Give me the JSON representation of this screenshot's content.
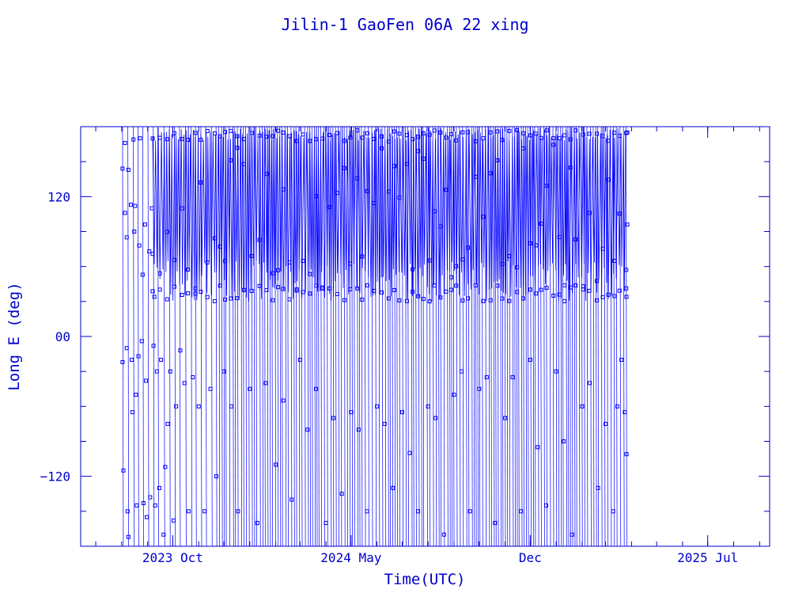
{
  "chart_data": {
    "type": "scatter",
    "title": "Jilin-1 GaoFen 06A 22 xing",
    "xlabel": "Time(UTC)",
    "ylabel": "Long E (deg)",
    "ylim": [
      -180,
      180
    ],
    "xlim": [
      "2023-06-13",
      "2025-09-13"
    ],
    "x_ticks": [
      {
        "label": "2023 Oct",
        "date": "2023-10-01"
      },
      {
        "label": "2024 May",
        "date": "2024-05-01"
      },
      {
        "label": "Dec",
        "date": "2024-12-01"
      },
      {
        "label": "2025 Jul",
        "date": "2025-07-01"
      }
    ],
    "y_ticks": [
      {
        "label": "120",
        "value": 120
      },
      {
        "label": "00",
        "value": 0
      },
      {
        "label": "−120",
        "value": -120
      }
    ],
    "grid": false,
    "series": [
      {
        "color": "#0000ff",
        "marker": "square",
        "x_range": [
          "2023-08-02",
          "2025-03-27"
        ],
        "y_band_dense": [
          30,
          180
        ],
        "points": [
          {
            "x": "2023-08-02",
            "y": 144
          },
          {
            "x": "2023-08-02",
            "y": -22
          },
          {
            "x": "2023-08-03",
            "y": -115
          },
          {
            "x": "2023-08-05",
            "y": 166
          },
          {
            "x": "2023-08-05",
            "y": 106
          },
          {
            "x": "2023-08-07",
            "y": -10
          },
          {
            "x": "2023-08-07",
            "y": 85
          },
          {
            "x": "2023-08-08",
            "y": -150
          },
          {
            "x": "2023-08-09",
            "y": 143
          },
          {
            "x": "2023-08-09",
            "y": -172
          },
          {
            "x": "2023-08-12",
            "y": 113
          },
          {
            "x": "2023-08-13",
            "y": -20
          },
          {
            "x": "2023-08-14",
            "y": -65
          },
          {
            "x": "2023-08-15",
            "y": 169
          },
          {
            "x": "2023-08-16",
            "y": 90
          },
          {
            "x": "2023-08-17",
            "y": 112
          },
          {
            "x": "2023-08-18",
            "y": -50
          },
          {
            "x": "2023-08-19",
            "y": -145
          },
          {
            "x": "2023-08-21",
            "y": -17
          },
          {
            "x": "2023-08-22",
            "y": 78
          },
          {
            "x": "2023-08-23",
            "y": 170
          },
          {
            "x": "2023-08-25",
            "y": -4
          },
          {
            "x": "2023-08-26",
            "y": 53
          },
          {
            "x": "2023-08-27",
            "y": -143
          },
          {
            "x": "2023-08-29",
            "y": 96
          },
          {
            "x": "2023-08-30",
            "y": -38
          },
          {
            "x": "2023-08-31",
            "y": -155
          },
          {
            "x": "2023-09-03",
            "y": 73
          },
          {
            "x": "2023-09-04",
            "y": -138
          },
          {
            "x": "2023-09-06",
            "y": 110
          },
          {
            "x": "2023-09-08",
            "y": -8
          },
          {
            "x": "2023-09-09",
            "y": 34
          },
          {
            "x": "2023-09-10",
            "y": -145
          },
          {
            "x": "2023-09-12",
            "y": -30
          },
          {
            "x": "2023-09-15",
            "y": -130
          },
          {
            "x": "2023-09-17",
            "y": -20
          },
          {
            "x": "2023-09-20",
            "y": -170
          },
          {
            "x": "2023-09-22",
            "y": -112
          },
          {
            "x": "2023-09-25",
            "y": -75
          },
          {
            "x": "2023-09-28",
            "y": -30
          },
          {
            "x": "2023-10-02",
            "y": -158
          },
          {
            "x": "2023-10-05",
            "y": -60
          },
          {
            "x": "2023-10-10",
            "y": -12
          },
          {
            "x": "2023-10-15",
            "y": -40
          },
          {
            "x": "2023-10-20",
            "y": -150
          },
          {
            "x": "2023-10-25",
            "y": -35
          },
          {
            "x": "2023-11-01",
            "y": -60
          },
          {
            "x": "2023-11-08",
            "y": -150
          },
          {
            "x": "2023-11-15",
            "y": -45
          },
          {
            "x": "2023-11-22",
            "y": -120
          },
          {
            "x": "2023-12-01",
            "y": -30
          },
          {
            "x": "2023-12-10",
            "y": -60
          },
          {
            "x": "2023-12-18",
            "y": -150
          },
          {
            "x": "2024-01-01",
            "y": -45
          },
          {
            "x": "2024-01-10",
            "y": -160
          },
          {
            "x": "2024-01-20",
            "y": -40
          },
          {
            "x": "2024-02-01",
            "y": -110
          },
          {
            "x": "2024-02-10",
            "y": -55
          },
          {
            "x": "2024-02-20",
            "y": -140
          },
          {
            "x": "2024-03-01",
            "y": -20
          },
          {
            "x": "2024-03-10",
            "y": -80
          },
          {
            "x": "2024-03-20",
            "y": -45
          },
          {
            "x": "2024-04-01",
            "y": -160
          },
          {
            "x": "2024-04-10",
            "y": -70
          },
          {
            "x": "2024-04-20",
            "y": -135
          },
          {
            "x": "2024-05-01",
            "y": -65
          },
          {
            "x": "2024-05-10",
            "y": -80
          },
          {
            "x": "2024-05-20",
            "y": -150
          },
          {
            "x": "2024-06-01",
            "y": -60
          },
          {
            "x": "2024-06-10",
            "y": -75
          },
          {
            "x": "2024-06-20",
            "y": -130
          },
          {
            "x": "2024-07-01",
            "y": -65
          },
          {
            "x": "2024-07-10",
            "y": -100
          },
          {
            "x": "2024-07-20",
            "y": -150
          },
          {
            "x": "2024-08-01",
            "y": -60
          },
          {
            "x": "2024-08-10",
            "y": -70
          },
          {
            "x": "2024-08-20",
            "y": -170
          },
          {
            "x": "2024-09-01",
            "y": -50
          },
          {
            "x": "2024-09-10",
            "y": -30
          },
          {
            "x": "2024-09-20",
            "y": -150
          },
          {
            "x": "2024-10-01",
            "y": -45
          },
          {
            "x": "2024-10-10",
            "y": -35
          },
          {
            "x": "2024-10-20",
            "y": -160
          },
          {
            "x": "2024-11-01",
            "y": -70
          },
          {
            "x": "2024-11-10",
            "y": -35
          },
          {
            "x": "2024-11-20",
            "y": -150
          },
          {
            "x": "2024-12-01",
            "y": -20
          },
          {
            "x": "2024-12-10",
            "y": -95
          },
          {
            "x": "2024-12-20",
            "y": -145
          },
          {
            "x": "2025-01-01",
            "y": -30
          },
          {
            "x": "2025-01-10",
            "y": -90
          },
          {
            "x": "2025-01-20",
            "y": -170
          },
          {
            "x": "2025-02-01",
            "y": -60
          },
          {
            "x": "2025-02-10",
            "y": -40
          },
          {
            "x": "2025-02-20",
            "y": -130
          },
          {
            "x": "2025-03-01",
            "y": -75
          },
          {
            "x": "2025-03-10",
            "y": -150
          },
          {
            "x": "2025-03-15",
            "y": -60
          },
          {
            "x": "2025-03-20",
            "y": -20
          },
          {
            "x": "2025-03-24",
            "y": -65
          },
          {
            "x": "2025-03-26",
            "y": 34
          },
          {
            "x": "2025-03-26",
            "y": -101
          },
          {
            "x": "2025-03-27",
            "y": 96
          },
          {
            "x": "2025-03-27",
            "y": 175
          }
        ]
      }
    ]
  }
}
